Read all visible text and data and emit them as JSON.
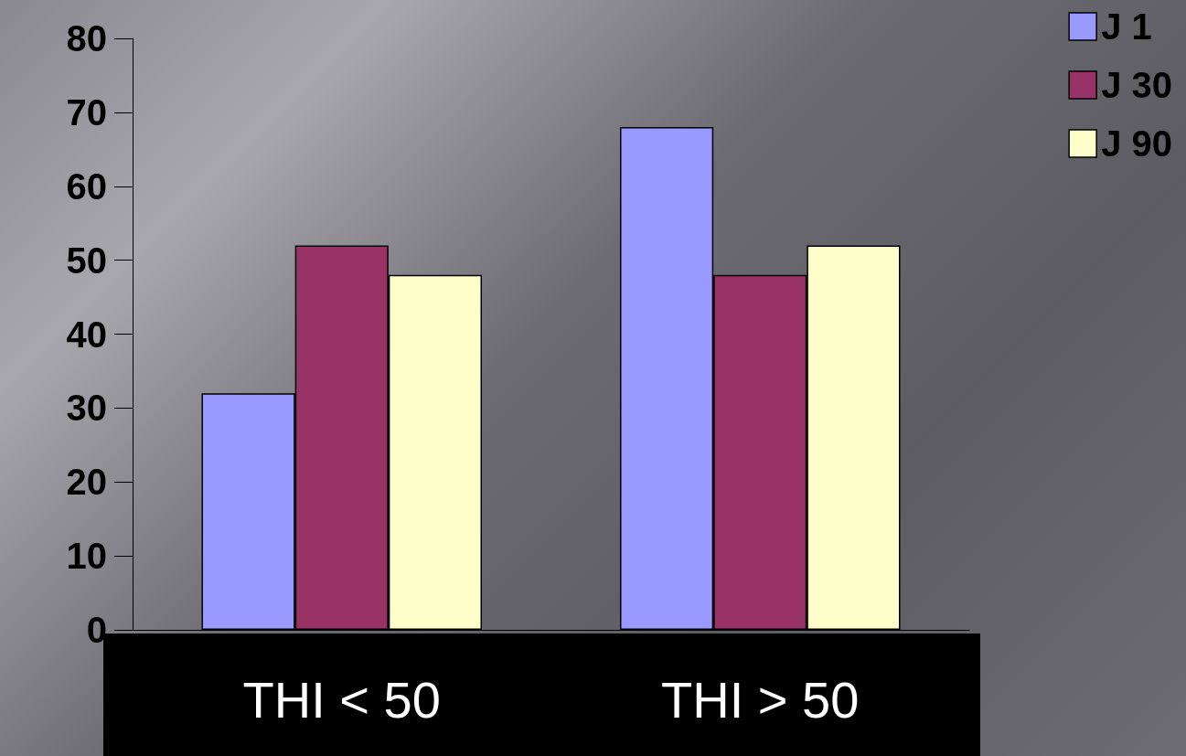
{
  "chart_data": {
    "type": "bar",
    "categories": [
      "THI < 50",
      "THI > 50"
    ],
    "series": [
      {
        "name": "J 1",
        "color": "#9999ff",
        "values": [
          32,
          68
        ]
      },
      {
        "name": "J 30",
        "color": "#993366",
        "values": [
          52,
          48
        ]
      },
      {
        "name": "J 90",
        "color": "#ffffcc",
        "values": [
          48,
          52
        ]
      }
    ],
    "ylim": [
      0,
      80
    ],
    "yticks": [
      0,
      10,
      20,
      30,
      40,
      50,
      60,
      70,
      80
    ],
    "grid": false,
    "legend": "top right"
  }
}
